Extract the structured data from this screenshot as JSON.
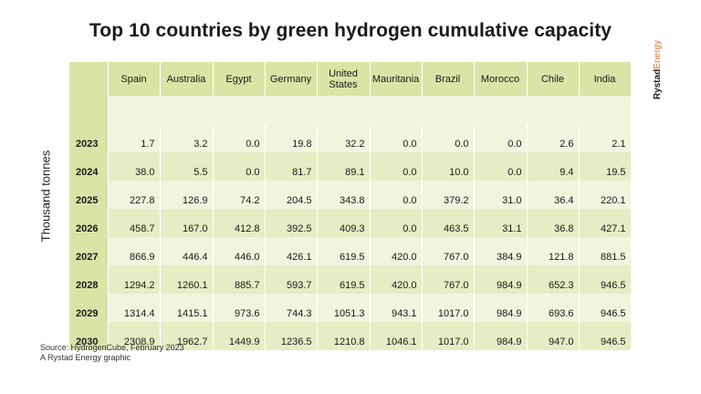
{
  "title": "Top 10 countries by green hydrogen cumulative capacity",
  "brand": {
    "bold": "Rystad",
    "light": "Energy"
  },
  "chart_data": {
    "type": "table",
    "title": "Top 10 countries by green hydrogen cumulative capacity",
    "ylabel": "Thousand tonnes",
    "columns": [
      "Spain",
      "Australia",
      "Egypt",
      "Germany",
      "United States",
      "Mauritania",
      "Brazil",
      "Morocco",
      "Chile",
      "India"
    ],
    "rows": [
      {
        "year": "2023",
        "values": [
          "1.7",
          "3.2",
          "0.0",
          "19.8",
          "32.2",
          "0.0",
          "0.0",
          "0.0",
          "2.6",
          "2.1"
        ]
      },
      {
        "year": "2024",
        "values": [
          "38.0",
          "5.5",
          "0.0",
          "81.7",
          "89.1",
          "0.0",
          "10.0",
          "0.0",
          "9.4",
          "19.5"
        ]
      },
      {
        "year": "2025",
        "values": [
          "227.8",
          "126.9",
          "74.2",
          "204.5",
          "343.8",
          "0.0",
          "379.2",
          "31.0",
          "36.4",
          "220.1"
        ]
      },
      {
        "year": "2026",
        "values": [
          "458.7",
          "167.0",
          "412.8",
          "392.5",
          "409.3",
          "0.0",
          "463.5",
          "31.1",
          "36.8",
          "427.1"
        ]
      },
      {
        "year": "2027",
        "values": [
          "866.9",
          "446.4",
          "446.0",
          "426.1",
          "619.5",
          "420.0",
          "767.0",
          "384.9",
          "121.8",
          "881.5"
        ]
      },
      {
        "year": "2028",
        "values": [
          "1294.2",
          "1260.1",
          "885.7",
          "593.7",
          "619.5",
          "420.0",
          "767.0",
          "984.9",
          "652.3",
          "946.5"
        ]
      },
      {
        "year": "2029",
        "values": [
          "1314.4",
          "1415.1",
          "973.6",
          "744.3",
          "1051.3",
          "943.1",
          "1017.0",
          "984.9",
          "693.6",
          "946.5"
        ]
      },
      {
        "year": "2030",
        "values": [
          "2308.9",
          "1962.7",
          "1449.9",
          "1236.5",
          "1210.8",
          "1046.1",
          "1017.0",
          "984.9",
          "947.0",
          "946.5"
        ]
      }
    ]
  },
  "source": {
    "line1": "Source:  HydrogenCube, February 2023",
    "line2": "A Rystad Energy graphic"
  },
  "colors": {
    "header": "#d9e5a7",
    "row_light": "#f0f5de",
    "row_dark": "#e4edc3",
    "brand_accent": "#e07a33"
  }
}
